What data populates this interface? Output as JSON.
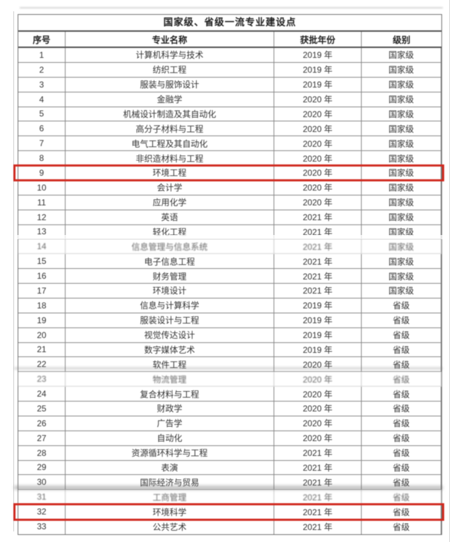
{
  "table": {
    "title": "国家级、省级一流专业建设点",
    "columns": [
      "序号",
      "专业名称",
      "获批年份",
      "级别"
    ],
    "highlight_color": "#d02a20",
    "levels": {
      "national": "国家级",
      "provincial": "省级"
    },
    "rows": [
      {
        "no": "1",
        "major": "计算机科学与技术",
        "year": "2019 年",
        "level": "国家级"
      },
      {
        "no": "2",
        "major": "纺织工程",
        "year": "2019 年",
        "level": "国家级"
      },
      {
        "no": "3",
        "major": "服装与服饰设计",
        "year": "2019 年",
        "level": "国家级"
      },
      {
        "no": "4",
        "major": "金融学",
        "year": "2020 年",
        "level": "国家级"
      },
      {
        "no": "5",
        "major": "机械设计制造及其自动化",
        "year": "2020 年",
        "level": "国家级"
      },
      {
        "no": "6",
        "major": "高分子材料与工程",
        "year": "2020 年",
        "level": "国家级"
      },
      {
        "no": "7",
        "major": "电气工程及其自动化",
        "year": "2020 年",
        "level": "国家级"
      },
      {
        "no": "8",
        "major": "非织造材料与工程",
        "year": "2020 年",
        "level": "国家级"
      },
      {
        "no": "9",
        "major": "环境工程",
        "year": "2020 年",
        "level": "国家级",
        "highlight": true
      },
      {
        "no": "10",
        "major": "会计学",
        "year": "2020 年",
        "level": "国家级"
      },
      {
        "no": "11",
        "major": "应用化学",
        "year": "2020 年",
        "level": "国家级"
      },
      {
        "no": "12",
        "major": "英语",
        "year": "2021 年",
        "level": "国家级"
      },
      {
        "no": "13",
        "major": "轻化工程",
        "year": "2021 年",
        "level": "国家级"
      },
      {
        "no": "14",
        "major": "信息管理与信息系统",
        "year": "2021 年",
        "level": "国家级",
        "faded": true
      },
      {
        "no": "15",
        "major": "电子信息工程",
        "year": "2021 年",
        "level": "国家级"
      },
      {
        "no": "16",
        "major": "财务管理",
        "year": "2021 年",
        "level": "国家级"
      },
      {
        "no": "17",
        "major": "环境设计",
        "year": "2021 年",
        "level": "国家级"
      },
      {
        "no": "18",
        "major": "信息与计算科学",
        "year": "2019 年",
        "level": "省级"
      },
      {
        "no": "19",
        "major": "服装设计与工程",
        "year": "2019 年",
        "level": "省级"
      },
      {
        "no": "20",
        "major": "视觉传达设计",
        "year": "2019 年",
        "level": "省级"
      },
      {
        "no": "21",
        "major": "数字媒体艺术",
        "year": "2019 年",
        "level": "省级"
      },
      {
        "no": "22",
        "major": "软件工程",
        "year": "2020 年",
        "level": "省级"
      },
      {
        "no": "23",
        "major": "物流管理",
        "year": "2020 年",
        "level": "省级",
        "faded": true
      },
      {
        "no": "24",
        "major": "复合材料与工程",
        "year": "2020 年",
        "level": "省级"
      },
      {
        "no": "25",
        "major": "财政学",
        "year": "2020 年",
        "level": "省级"
      },
      {
        "no": "26",
        "major": "广告学",
        "year": "2020 年",
        "level": "省级"
      },
      {
        "no": "27",
        "major": "自动化",
        "year": "2020 年",
        "level": "省级"
      },
      {
        "no": "28",
        "major": "资源循环科学与工程",
        "year": "2021 年",
        "level": "省级"
      },
      {
        "no": "29",
        "major": "表演",
        "year": "2021 年",
        "level": "省级"
      },
      {
        "no": "30",
        "major": "国际经济与贸易",
        "year": "2021 年",
        "level": "省级"
      },
      {
        "no": "31",
        "major": "工商管理",
        "year": "2021 年",
        "level": "省级",
        "faded": true
      },
      {
        "no": "32",
        "major": "环境科学",
        "year": "2021 年",
        "level": "省级",
        "highlight": true
      },
      {
        "no": "33",
        "major": "公共艺术",
        "year": "2021 年",
        "level": "省级"
      }
    ]
  }
}
